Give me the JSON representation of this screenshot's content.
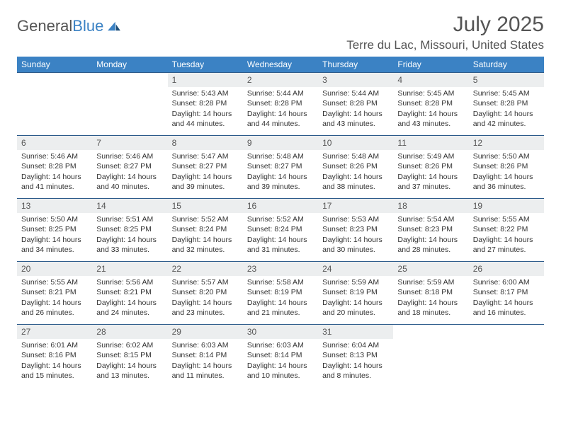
{
  "brand": {
    "name_part1": "General",
    "name_part2": "Blue"
  },
  "title": "July 2025",
  "location": "Terre du Lac, Missouri, United States",
  "colors": {
    "header_bg": "#3b82c4",
    "row_border": "#2b5a8a",
    "daynum_bg": "#eceeef",
    "text": "#333333",
    "muted": "#555555"
  },
  "day_names": [
    "Sunday",
    "Monday",
    "Tuesday",
    "Wednesday",
    "Thursday",
    "Friday",
    "Saturday"
  ],
  "weeks": [
    [
      {
        "n": "",
        "sr": "",
        "ss": "",
        "dl": ""
      },
      {
        "n": "",
        "sr": "",
        "ss": "",
        "dl": ""
      },
      {
        "n": "1",
        "sr": "Sunrise: 5:43 AM",
        "ss": "Sunset: 8:28 PM",
        "dl": "Daylight: 14 hours and 44 minutes."
      },
      {
        "n": "2",
        "sr": "Sunrise: 5:44 AM",
        "ss": "Sunset: 8:28 PM",
        "dl": "Daylight: 14 hours and 44 minutes."
      },
      {
        "n": "3",
        "sr": "Sunrise: 5:44 AM",
        "ss": "Sunset: 8:28 PM",
        "dl": "Daylight: 14 hours and 43 minutes."
      },
      {
        "n": "4",
        "sr": "Sunrise: 5:45 AM",
        "ss": "Sunset: 8:28 PM",
        "dl": "Daylight: 14 hours and 43 minutes."
      },
      {
        "n": "5",
        "sr": "Sunrise: 5:45 AM",
        "ss": "Sunset: 8:28 PM",
        "dl": "Daylight: 14 hours and 42 minutes."
      }
    ],
    [
      {
        "n": "6",
        "sr": "Sunrise: 5:46 AM",
        "ss": "Sunset: 8:28 PM",
        "dl": "Daylight: 14 hours and 41 minutes."
      },
      {
        "n": "7",
        "sr": "Sunrise: 5:46 AM",
        "ss": "Sunset: 8:27 PM",
        "dl": "Daylight: 14 hours and 40 minutes."
      },
      {
        "n": "8",
        "sr": "Sunrise: 5:47 AM",
        "ss": "Sunset: 8:27 PM",
        "dl": "Daylight: 14 hours and 39 minutes."
      },
      {
        "n": "9",
        "sr": "Sunrise: 5:48 AM",
        "ss": "Sunset: 8:27 PM",
        "dl": "Daylight: 14 hours and 39 minutes."
      },
      {
        "n": "10",
        "sr": "Sunrise: 5:48 AM",
        "ss": "Sunset: 8:26 PM",
        "dl": "Daylight: 14 hours and 38 minutes."
      },
      {
        "n": "11",
        "sr": "Sunrise: 5:49 AM",
        "ss": "Sunset: 8:26 PM",
        "dl": "Daylight: 14 hours and 37 minutes."
      },
      {
        "n": "12",
        "sr": "Sunrise: 5:50 AM",
        "ss": "Sunset: 8:26 PM",
        "dl": "Daylight: 14 hours and 36 minutes."
      }
    ],
    [
      {
        "n": "13",
        "sr": "Sunrise: 5:50 AM",
        "ss": "Sunset: 8:25 PM",
        "dl": "Daylight: 14 hours and 34 minutes."
      },
      {
        "n": "14",
        "sr": "Sunrise: 5:51 AM",
        "ss": "Sunset: 8:25 PM",
        "dl": "Daylight: 14 hours and 33 minutes."
      },
      {
        "n": "15",
        "sr": "Sunrise: 5:52 AM",
        "ss": "Sunset: 8:24 PM",
        "dl": "Daylight: 14 hours and 32 minutes."
      },
      {
        "n": "16",
        "sr": "Sunrise: 5:52 AM",
        "ss": "Sunset: 8:24 PM",
        "dl": "Daylight: 14 hours and 31 minutes."
      },
      {
        "n": "17",
        "sr": "Sunrise: 5:53 AM",
        "ss": "Sunset: 8:23 PM",
        "dl": "Daylight: 14 hours and 30 minutes."
      },
      {
        "n": "18",
        "sr": "Sunrise: 5:54 AM",
        "ss": "Sunset: 8:23 PM",
        "dl": "Daylight: 14 hours and 28 minutes."
      },
      {
        "n": "19",
        "sr": "Sunrise: 5:55 AM",
        "ss": "Sunset: 8:22 PM",
        "dl": "Daylight: 14 hours and 27 minutes."
      }
    ],
    [
      {
        "n": "20",
        "sr": "Sunrise: 5:55 AM",
        "ss": "Sunset: 8:21 PM",
        "dl": "Daylight: 14 hours and 26 minutes."
      },
      {
        "n": "21",
        "sr": "Sunrise: 5:56 AM",
        "ss": "Sunset: 8:21 PM",
        "dl": "Daylight: 14 hours and 24 minutes."
      },
      {
        "n": "22",
        "sr": "Sunrise: 5:57 AM",
        "ss": "Sunset: 8:20 PM",
        "dl": "Daylight: 14 hours and 23 minutes."
      },
      {
        "n": "23",
        "sr": "Sunrise: 5:58 AM",
        "ss": "Sunset: 8:19 PM",
        "dl": "Daylight: 14 hours and 21 minutes."
      },
      {
        "n": "24",
        "sr": "Sunrise: 5:59 AM",
        "ss": "Sunset: 8:19 PM",
        "dl": "Daylight: 14 hours and 20 minutes."
      },
      {
        "n": "25",
        "sr": "Sunrise: 5:59 AM",
        "ss": "Sunset: 8:18 PM",
        "dl": "Daylight: 14 hours and 18 minutes."
      },
      {
        "n": "26",
        "sr": "Sunrise: 6:00 AM",
        "ss": "Sunset: 8:17 PM",
        "dl": "Daylight: 14 hours and 16 minutes."
      }
    ],
    [
      {
        "n": "27",
        "sr": "Sunrise: 6:01 AM",
        "ss": "Sunset: 8:16 PM",
        "dl": "Daylight: 14 hours and 15 minutes."
      },
      {
        "n": "28",
        "sr": "Sunrise: 6:02 AM",
        "ss": "Sunset: 8:15 PM",
        "dl": "Daylight: 14 hours and 13 minutes."
      },
      {
        "n": "29",
        "sr": "Sunrise: 6:03 AM",
        "ss": "Sunset: 8:14 PM",
        "dl": "Daylight: 14 hours and 11 minutes."
      },
      {
        "n": "30",
        "sr": "Sunrise: 6:03 AM",
        "ss": "Sunset: 8:14 PM",
        "dl": "Daylight: 14 hours and 10 minutes."
      },
      {
        "n": "31",
        "sr": "Sunrise: 6:04 AM",
        "ss": "Sunset: 8:13 PM",
        "dl": "Daylight: 14 hours and 8 minutes."
      },
      {
        "n": "",
        "sr": "",
        "ss": "",
        "dl": ""
      },
      {
        "n": "",
        "sr": "",
        "ss": "",
        "dl": ""
      }
    ]
  ]
}
